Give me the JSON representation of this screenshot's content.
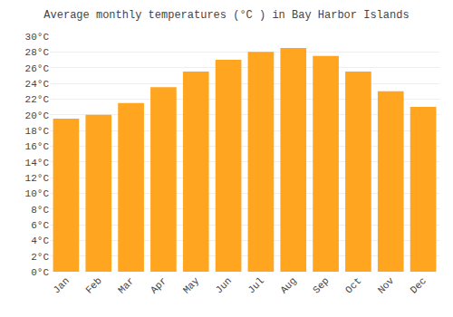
{
  "chart_data": {
    "type": "bar",
    "title": "Average monthly temperatures (°C ) in Bay Harbor Islands",
    "categories": [
      "Jan",
      "Feb",
      "Mar",
      "Apr",
      "May",
      "Jun",
      "Jul",
      "Aug",
      "Sep",
      "Oct",
      "Nov",
      "Dec"
    ],
    "values": [
      19.5,
      20.0,
      21.5,
      23.5,
      25.5,
      27.0,
      28.0,
      28.5,
      27.5,
      25.5,
      23.0,
      21.0
    ],
    "color": "#FFA520",
    "ylim": [
      0,
      30
    ],
    "yticks": [
      {
        "value": 0,
        "label": "0°C"
      },
      {
        "value": 2,
        "label": "2°C"
      },
      {
        "value": 4,
        "label": "4°C"
      },
      {
        "value": 6,
        "label": "6°C"
      },
      {
        "value": 8,
        "label": "8°C"
      },
      {
        "value": 10,
        "label": "10°C"
      },
      {
        "value": 12,
        "label": "12°C"
      },
      {
        "value": 14,
        "label": "14°C"
      },
      {
        "value": 16,
        "label": "16°C"
      },
      {
        "value": 18,
        "label": "18°C"
      },
      {
        "value": 20,
        "label": "20°C"
      },
      {
        "value": 22,
        "label": "22°C"
      },
      {
        "value": 24,
        "label": "24°C"
      },
      {
        "value": 26,
        "label": "26°C"
      },
      {
        "value": 28,
        "label": "28°C"
      },
      {
        "value": 30,
        "label": "30°C"
      }
    ],
    "grid": true
  }
}
